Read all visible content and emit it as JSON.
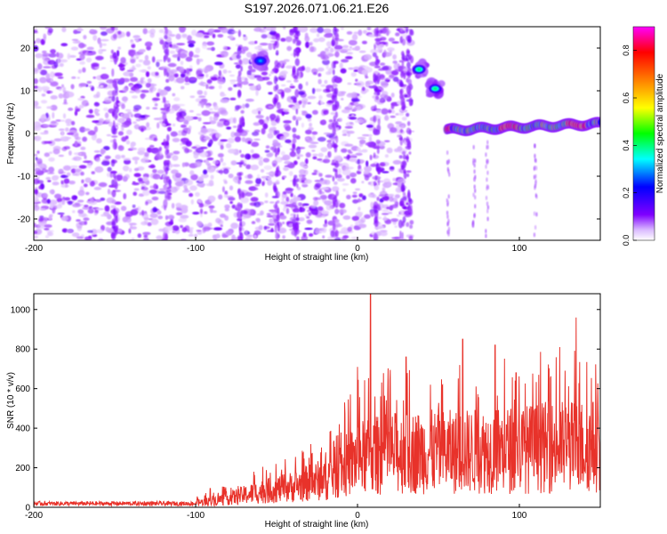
{
  "figure": {
    "title": "S197.2026.071.06.21.E26"
  },
  "chart_data": [
    {
      "type": "heatmap",
      "xlabel": "Height of straight line (km)",
      "ylabel": "Frequency (Hz)",
      "xlim": [
        -200,
        150
      ],
      "ylim": [
        -25,
        25
      ],
      "xticks": [
        -200,
        -100,
        0,
        100
      ],
      "yticks": [
        -20,
        -10,
        0,
        10,
        20
      ],
      "colorbar": {
        "label": "Normalized spectral amplitude",
        "range": [
          0,
          0.9
        ],
        "ticks": [
          0,
          0.2,
          0.4,
          0.6,
          0.8
        ],
        "colormap": [
          "#ffffff",
          "#7f00ff",
          "#0000ff",
          "#00ffff",
          "#00ff00",
          "#ffff00",
          "#ff7f00",
          "#ff0000",
          "#ff00ff"
        ]
      },
      "features": [
        {
          "kind": "noise",
          "x_range": [
            -200,
            33
          ],
          "y_range": [
            -25,
            25
          ],
          "amplitude": 0.1
        },
        {
          "kind": "blob",
          "x": -60,
          "y": 17,
          "amplitude": 0.25
        },
        {
          "kind": "blob",
          "x": 38,
          "y": 15,
          "amplitude": 0.35
        },
        {
          "kind": "blob",
          "x": 48,
          "y": 10.5,
          "amplitude": 0.35
        },
        {
          "kind": "ridge",
          "x_range": [
            55,
            150
          ],
          "y_range": [
            0.5,
            2.5
          ],
          "amplitude": 0.8
        }
      ]
    },
    {
      "type": "line",
      "xlabel": "Height of straight line (km)",
      "ylabel": "SNR (10 * v/v)",
      "xlim": [
        -200,
        150
      ],
      "ylim": [
        0,
        1080
      ],
      "xticks": [
        -200,
        -100,
        0,
        100
      ],
      "yticks": [
        0,
        200,
        400,
        600,
        800,
        1000
      ],
      "color": "#e8322a",
      "envelope": [
        {
          "x": -200,
          "y": 20
        },
        {
          "x": -120,
          "y": 20
        },
        {
          "x": -95,
          "y": 40
        },
        {
          "x": -80,
          "y": 70
        },
        {
          "x": -60,
          "y": 120
        },
        {
          "x": -40,
          "y": 160
        },
        {
          "x": -20,
          "y": 220
        },
        {
          "x": -10,
          "y": 300
        },
        {
          "x": 0,
          "y": 380
        },
        {
          "x": 20,
          "y": 420
        },
        {
          "x": 40,
          "y": 430
        },
        {
          "x": 60,
          "y": 430
        },
        {
          "x": 80,
          "y": 440
        },
        {
          "x": 100,
          "y": 450
        },
        {
          "x": 120,
          "y": 470
        },
        {
          "x": 150,
          "y": 480
        }
      ],
      "peaks": [
        {
          "x": -91,
          "y": 95
        },
        {
          "x": -64,
          "y": 180
        },
        {
          "x": -30,
          "y": 250
        },
        {
          "x": -8,
          "y": 530
        },
        {
          "x": 0,
          "y": 710
        },
        {
          "x": 8,
          "y": 1080
        },
        {
          "x": 20,
          "y": 640
        },
        {
          "x": 30,
          "y": 760
        },
        {
          "x": 45,
          "y": 620
        },
        {
          "x": 65,
          "y": 850
        },
        {
          "x": 85,
          "y": 820
        },
        {
          "x": 98,
          "y": 680
        },
        {
          "x": 112,
          "y": 670
        },
        {
          "x": 125,
          "y": 810
        },
        {
          "x": 135,
          "y": 960
        },
        {
          "x": 150,
          "y": 840
        }
      ]
    }
  ]
}
